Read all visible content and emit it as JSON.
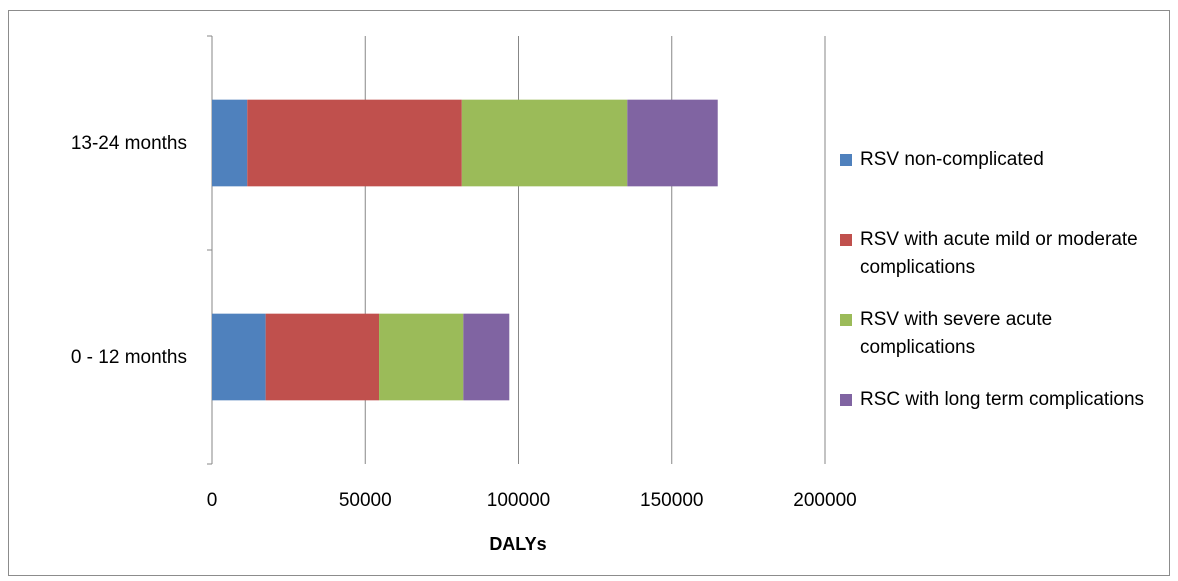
{
  "chart_data": {
    "type": "bar",
    "orientation": "horizontal",
    "stacked": true,
    "categories": [
      "0 - 12 months",
      "13-24 months"
    ],
    "series": [
      {
        "name": "RSV non-complicated",
        "color": "#4f81bd",
        "values": [
          17500,
          11500
        ]
      },
      {
        "name": "RSV with acute mild or moderate complications",
        "color": "#c0504d",
        "values": [
          37000,
          70000
        ]
      },
      {
        "name": "RSV with severe acute complications",
        "color": "#9bbb59",
        "values": [
          27500,
          54000
        ]
      },
      {
        "name": "RSC with long term complications",
        "color": "#8064a2",
        "values": [
          15000,
          29500
        ]
      }
    ],
    "xlabel": "DALYs",
    "ylabel": "",
    "xlim": [
      0,
      200000
    ],
    "xticks": [
      "0",
      "50000",
      "100000",
      "150000",
      "200000"
    ],
    "grid": "vertical",
    "legend_position": "right"
  }
}
